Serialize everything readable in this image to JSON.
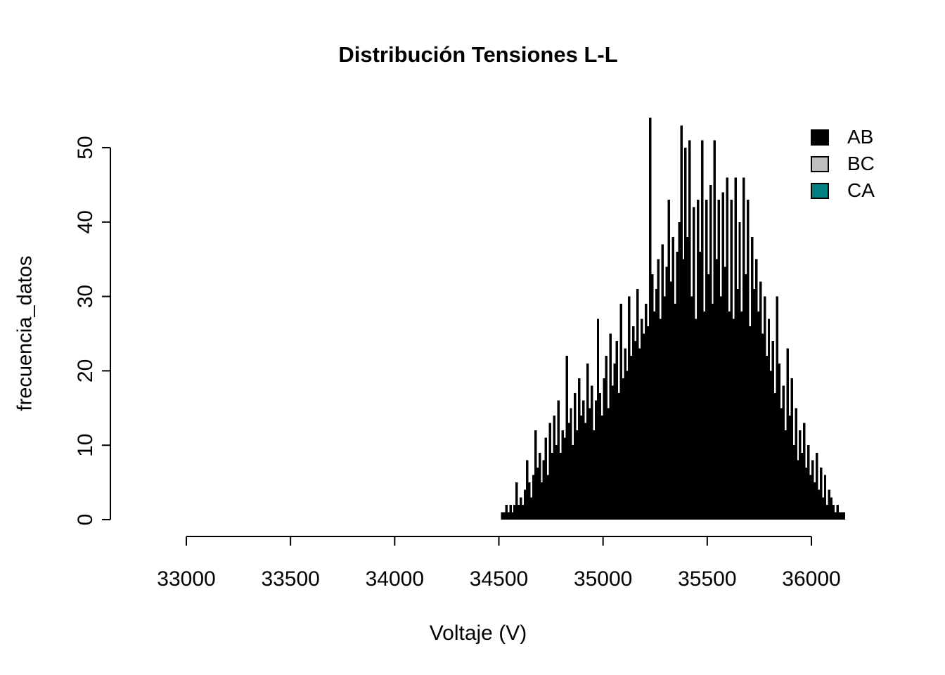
{
  "chart_data": {
    "type": "bar",
    "subtype": "histogram",
    "title": "Distribución Tensiones L-L",
    "xlabel": "Voltaje (V)",
    "ylabel": "frecuencia_datos",
    "x_ticks": [
      33000,
      33500,
      34000,
      34500,
      35000,
      35500,
      36000
    ],
    "y_ticks": [
      0,
      10,
      20,
      30,
      40,
      50
    ],
    "xlim": [
      33000,
      36000
    ],
    "ylim": [
      0,
      50
    ],
    "grid": false,
    "bin_start": 34510,
    "bin_width": 10,
    "legend": {
      "position": "topright",
      "entries": [
        {
          "label": "AB",
          "color": "#000000"
        },
        {
          "label": "BC",
          "color": "#bebebe"
        },
        {
          "label": "CA",
          "color": "#008080"
        }
      ]
    },
    "series": [
      {
        "name": "AB",
        "color": "#000000",
        "values": [
          1,
          1,
          2,
          1,
          2,
          1,
          2,
          5,
          2,
          3,
          2,
          4,
          8,
          5,
          3,
          6,
          12,
          7,
          9,
          5,
          8,
          11,
          6,
          13,
          9,
          14,
          10,
          16,
          9,
          12,
          11,
          22,
          13,
          15,
          10,
          17,
          12,
          19,
          14,
          16,
          13,
          21,
          15,
          18,
          12,
          16,
          27,
          17,
          14,
          19,
          22,
          15,
          25,
          18,
          21,
          24,
          17,
          29,
          19,
          23,
          20,
          30,
          22,
          26,
          24,
          31,
          23,
          27,
          25,
          29,
          26,
          54,
          33,
          28,
          31,
          35,
          27,
          37,
          30,
          34,
          43,
          32,
          38,
          29,
          36,
          40,
          53,
          35,
          50,
          38,
          51,
          30,
          42,
          27,
          43,
          36,
          51,
          28,
          43,
          33,
          45,
          29,
          51,
          35,
          43,
          30,
          44,
          34,
          46,
          28,
          43,
          27,
          46,
          31,
          40,
          28,
          46,
          33,
          43,
          26,
          38,
          31,
          35,
          28,
          32,
          25,
          30,
          22,
          27,
          20,
          24,
          17,
          30,
          21,
          15,
          18,
          12,
          23,
          14,
          19,
          10,
          15,
          8,
          12,
          9,
          13,
          7,
          10,
          6,
          8,
          5,
          9,
          4,
          7,
          3,
          6,
          2,
          4,
          3,
          2,
          1,
          2,
          1,
          1,
          1
        ]
      }
    ],
    "axis_color": "#000000",
    "background_color": "#ffffff"
  }
}
